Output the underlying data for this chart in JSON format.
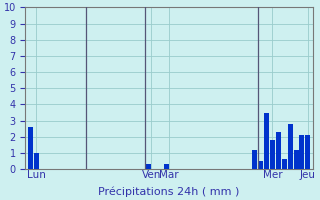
{
  "values": [
    2.6,
    1.0,
    0,
    0,
    0,
    0,
    0,
    0,
    0,
    0,
    0,
    0,
    0,
    0,
    0,
    0,
    0,
    0,
    0,
    0,
    0.3,
    0,
    0,
    0.3,
    0,
    0,
    0,
    0,
    0,
    0,
    0,
    0,
    0,
    0,
    0,
    0,
    0,
    0,
    1.2,
    0.5,
    3.5,
    1.8,
    2.3,
    0.6,
    2.8,
    1.2,
    2.1,
    2.1
  ],
  "bar_color": "#0033cc",
  "background_color": "#cef0f0",
  "grid_color": "#99cccc",
  "axis_line_color": "#777777",
  "xlabel": "Précipitations 24h ( mm )",
  "xlabel_color": "#3333aa",
  "tick_label_color": "#3333aa",
  "ylim": [
    0,
    10
  ],
  "yticks": [
    0,
    1,
    2,
    3,
    4,
    5,
    6,
    7,
    8,
    9,
    10
  ],
  "day_labels": [
    "Lun",
    "Ven",
    "Mar",
    "Mer",
    "Jeu"
  ],
  "day_tick_positions": [
    1,
    20.5,
    23.5,
    41,
    47
  ],
  "vline_positions": [
    9.5,
    19.5,
    38.5
  ],
  "vline_color": "#555577",
  "total_bars": 48
}
